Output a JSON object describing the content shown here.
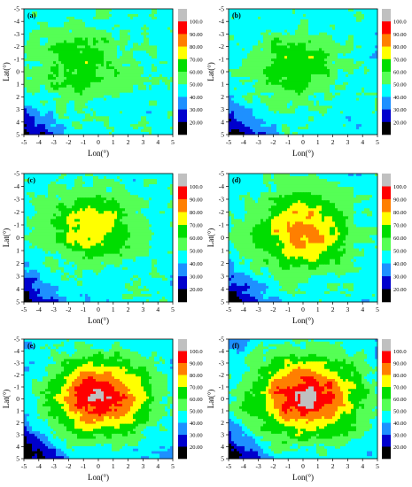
{
  "chart_data": [
    {
      "type": "heatmap",
      "panel_label": "(a)",
      "x_label": "Lon(°)",
      "y_label": "Lat(°)",
      "x_range": [
        -5,
        5
      ],
      "y_range": [
        -5,
        5
      ],
      "x_ticks": [
        -5,
        -4,
        -3,
        -2,
        -1,
        0,
        1,
        2,
        3,
        4,
        5
      ],
      "y_ticks": [
        -5,
        -4,
        -3,
        -2,
        -1,
        0,
        1,
        2,
        3,
        4,
        5
      ],
      "y_axis_inverted": true,
      "peak_level": 70
    },
    {
      "type": "heatmap",
      "panel_label": "(b)",
      "x_label": "Lon(°)",
      "y_label": "Lat(°)",
      "x_range": [
        -5,
        5
      ],
      "y_range": [
        -5,
        5
      ],
      "x_ticks": [
        -5,
        -4,
        -3,
        -2,
        -1,
        0,
        1,
        2,
        3,
        4,
        5
      ],
      "y_ticks": [
        -5,
        -4,
        -3,
        -2,
        -1,
        0,
        1,
        2,
        3,
        4,
        5
      ],
      "y_axis_inverted": true,
      "peak_level": 70
    },
    {
      "type": "heatmap",
      "panel_label": "(c)",
      "x_label": "Lon(°)",
      "y_label": "Lat(°)",
      "x_range": [
        -5,
        5
      ],
      "y_range": [
        -5,
        5
      ],
      "x_ticks": [
        -5,
        -4,
        -3,
        -2,
        -1,
        0,
        1,
        2,
        3,
        4,
        5
      ],
      "y_ticks": [
        -5,
        -4,
        -3,
        -2,
        -1,
        0,
        1,
        2,
        3,
        4,
        5
      ],
      "y_axis_inverted": true,
      "peak_level": 80
    },
    {
      "type": "heatmap",
      "panel_label": "(d)",
      "x_label": "Lon(°)",
      "y_label": "Lat(°)",
      "x_range": [
        -5,
        5
      ],
      "y_range": [
        -5,
        5
      ],
      "x_ticks": [
        -5,
        -4,
        -3,
        -2,
        -1,
        0,
        1,
        2,
        3,
        4,
        5
      ],
      "y_ticks": [
        -5,
        -4,
        -3,
        -2,
        -1,
        0,
        1,
        2,
        3,
        4,
        5
      ],
      "y_axis_inverted": true,
      "peak_level": 90
    },
    {
      "type": "heatmap",
      "panel_label": "(e)",
      "x_label": "Lon(°)",
      "y_label": "Lat(°)",
      "x_range": [
        -5,
        5
      ],
      "y_range": [
        -5,
        5
      ],
      "x_ticks": [
        -5,
        -4,
        -3,
        -2,
        -1,
        0,
        1,
        2,
        3,
        4,
        5
      ],
      "y_ticks": [
        -5,
        -4,
        -3,
        -2,
        -1,
        0,
        1,
        2,
        3,
        4,
        5
      ],
      "y_axis_inverted": true,
      "peak_level": 100
    },
    {
      "type": "heatmap",
      "panel_label": "(f)",
      "x_label": "Lon(°)",
      "y_label": "Lat(°)",
      "x_range": [
        -5,
        5
      ],
      "y_range": [
        -5,
        5
      ],
      "x_ticks": [
        -5,
        -4,
        -3,
        -2,
        -1,
        0,
        1,
        2,
        3,
        4,
        5
      ],
      "y_ticks": [
        -5,
        -4,
        -3,
        -2,
        -1,
        0,
        1,
        2,
        3,
        4,
        5
      ],
      "y_axis_inverted": true,
      "peak_level": 100
    }
  ],
  "colorbar": {
    "labels": [
      "100.0",
      "90.00",
      "80.00",
      "70.00",
      "60.00",
      "50.00",
      "40.00",
      "30.00",
      "20.00"
    ],
    "colors": [
      "#c0c0c0",
      "#ff0000",
      "#ff7f00",
      "#ffff00",
      "#00dd00",
      "#55ff55",
      "#00ffff",
      "#1e90ff",
      "#0000cd",
      "#000000"
    ]
  }
}
